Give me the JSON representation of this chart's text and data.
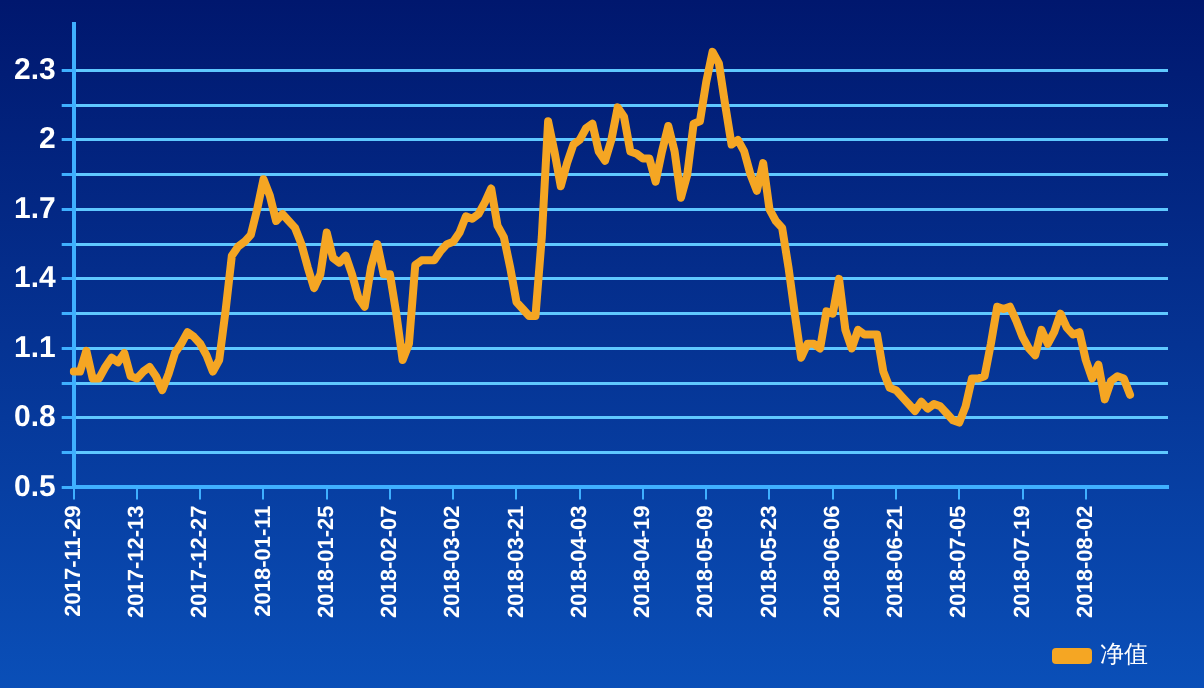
{
  "chart_data": {
    "type": "line",
    "categories": [
      "2017-11-29",
      null,
      null,
      null,
      null,
      null,
      null,
      null,
      null,
      null,
      "2017-12-13",
      null,
      null,
      null,
      null,
      null,
      null,
      null,
      null,
      null,
      "2017-12-27",
      null,
      null,
      null,
      null,
      null,
      null,
      null,
      null,
      null,
      "2018-01-11",
      null,
      null,
      null,
      null,
      null,
      null,
      null,
      null,
      null,
      "2018-01-25",
      null,
      null,
      null,
      null,
      null,
      null,
      null,
      null,
      null,
      "2018-02-07",
      null,
      null,
      null,
      null,
      null,
      null,
      null,
      null,
      null,
      "2018-03-02",
      null,
      null,
      null,
      null,
      null,
      null,
      null,
      null,
      null,
      "2018-03-21",
      null,
      null,
      null,
      null,
      null,
      null,
      null,
      null,
      null,
      "2018-04-03",
      null,
      null,
      null,
      null,
      null,
      null,
      null,
      null,
      null,
      "2018-04-19",
      null,
      null,
      null,
      null,
      null,
      null,
      null,
      null,
      null,
      "2018-05-09",
      null,
      null,
      null,
      null,
      null,
      null,
      null,
      null,
      null,
      "2018-05-23",
      null,
      null,
      null,
      null,
      null,
      null,
      null,
      null,
      null,
      "2018-06-06",
      null,
      null,
      null,
      null,
      null,
      null,
      null,
      null,
      null,
      "2018-06-21",
      null,
      null,
      null,
      null,
      null,
      null,
      null,
      null,
      null,
      "2018-07-05",
      null,
      null,
      null,
      null,
      null,
      null,
      null,
      null,
      null,
      "2018-07-19",
      null,
      null,
      null,
      null,
      null,
      null,
      null,
      null,
      null,
      "2018-08-02",
      null,
      null,
      null,
      null,
      null,
      null,
      null,
      null,
      null,
      null,
      null,
      null,
      null
    ],
    "series": [
      {
        "name": "净值",
        "color": "#f5a623",
        "values": [
          1.0,
          1.0,
          1.09,
          0.97,
          0.97,
          1.02,
          1.06,
          1.04,
          1.08,
          0.98,
          0.97,
          1.0,
          1.02,
          0.98,
          0.92,
          0.99,
          1.08,
          1.12,
          1.17,
          1.15,
          1.12,
          1.07,
          1.0,
          1.05,
          1.26,
          1.5,
          1.54,
          1.56,
          1.59,
          1.7,
          1.83,
          1.76,
          1.65,
          1.68,
          1.65,
          1.62,
          1.55,
          1.45,
          1.36,
          1.42,
          1.6,
          1.49,
          1.47,
          1.5,
          1.42,
          1.32,
          1.28,
          1.45,
          1.55,
          1.42,
          1.42,
          1.25,
          1.05,
          1.12,
          1.46,
          1.48,
          1.48,
          1.48,
          1.52,
          1.55,
          1.56,
          1.6,
          1.67,
          1.66,
          1.68,
          1.73,
          1.79,
          1.63,
          1.58,
          1.45,
          1.3,
          1.27,
          1.24,
          1.24,
          1.58,
          2.08,
          1.95,
          1.8,
          1.9,
          1.98,
          2.0,
          2.05,
          2.07,
          1.95,
          1.91,
          2.0,
          2.14,
          2.1,
          1.95,
          1.94,
          1.92,
          1.92,
          1.82,
          1.95,
          2.06,
          1.95,
          1.75,
          1.85,
          2.07,
          2.08,
          2.25,
          2.38,
          2.33,
          2.15,
          1.98,
          2.0,
          1.95,
          1.85,
          1.78,
          1.9,
          1.7,
          1.65,
          1.62,
          1.45,
          1.25,
          1.06,
          1.12,
          1.12,
          1.1,
          1.26,
          1.25,
          1.4,
          1.18,
          1.1,
          1.18,
          1.16,
          1.16,
          1.16,
          1.0,
          0.93,
          0.92,
          0.89,
          0.86,
          0.83,
          0.87,
          0.84,
          0.86,
          0.85,
          0.82,
          0.79,
          0.78,
          0.85,
          0.97,
          0.97,
          0.98,
          1.12,
          1.28,
          1.27,
          1.28,
          1.22,
          1.15,
          1.1,
          1.07,
          1.18,
          1.12,
          1.17,
          1.25,
          1.19,
          1.16,
          1.17,
          1.05,
          0.97,
          1.03,
          0.88,
          0.96,
          0.98,
          0.97,
          0.9,
          null,
          null,
          null,
          null,
          null,
          null
        ]
      }
    ],
    "ylim": [
      0.5,
      2.5
    ],
    "yticks": [
      0.5,
      {
        "value": 0.65,
        "label": null
      },
      0.8,
      {
        "value": 0.95,
        "label": null
      },
      1.1,
      {
        "value": 1.25,
        "label": null
      },
      1.4,
      {
        "value": 1.55,
        "label": null
      },
      1.7,
      {
        "value": 1.85,
        "label": null
      },
      2,
      {
        "value": 2.15,
        "label": null
      },
      2.3
    ],
    "grid": "y",
    "legend": "bottom right",
    "marker": "none",
    "line_style": "solid"
  }
}
